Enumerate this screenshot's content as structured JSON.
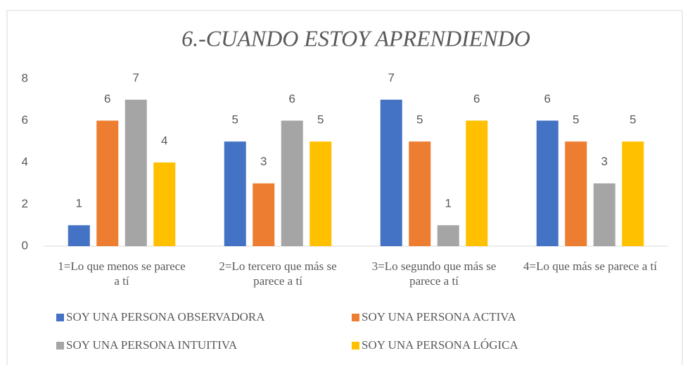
{
  "chart_data": {
    "type": "bar",
    "title": "6.-CUANDO ESTOY APRENDIENDO",
    "categories": [
      "1=Lo que menos se parece a tí",
      "2=Lo tercero que más se parece a tí",
      "3=Lo segundo que más se parece a tí",
      "4=Lo que más se parece a tí"
    ],
    "series": [
      {
        "name": "SOY UNA PERSONA OBSERVADORA",
        "color": "#4472c4",
        "values": [
          1,
          5,
          7,
          6
        ]
      },
      {
        "name": "SOY UNA PERSONA ACTIVA",
        "color": "#ed7d31",
        "values": [
          6,
          3,
          5,
          5
        ]
      },
      {
        "name": "SOY UNA PERSONA INTUITIVA",
        "color": "#a5a5a5",
        "values": [
          7,
          6,
          1,
          3
        ]
      },
      {
        "name": "SOY UNA PERSONA LÓGICA",
        "color": "#ffc000",
        "values": [
          4,
          5,
          6,
          5
        ]
      }
    ],
    "ylim": [
      0,
      8
    ],
    "yticks": [
      0,
      2,
      4,
      6,
      8
    ],
    "grid": false
  }
}
